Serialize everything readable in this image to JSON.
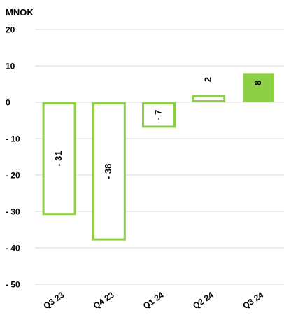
{
  "chart_data": {
    "type": "bar",
    "ylabel": "MNOK",
    "categories": [
      "Q3 23",
      "Q4 23",
      "Q1 24",
      "Q2 24",
      "Q3 24"
    ],
    "values": [
      -31,
      -38,
      -7,
      2,
      8
    ],
    "data_labels": [
      "- 31",
      "- 38",
      "- 7",
      "2",
      "8"
    ],
    "ylim": [
      -50,
      20
    ],
    "yticks": [
      20,
      10,
      0,
      -10,
      -20,
      -30,
      -40,
      -50
    ],
    "ytick_labels": [
      "20",
      "10",
      "0",
      "- 10",
      "- 20",
      "- 30",
      "- 40",
      "- 50"
    ],
    "grid": true,
    "legend": "none",
    "highlight_index": 4,
    "colors": {
      "bar_outline": "#8DCF45",
      "bar_highlight_fill": "#8DCF45",
      "bar_fill": "#ffffff",
      "grid": "#d9d9d9",
      "text": "#000000"
    }
  }
}
